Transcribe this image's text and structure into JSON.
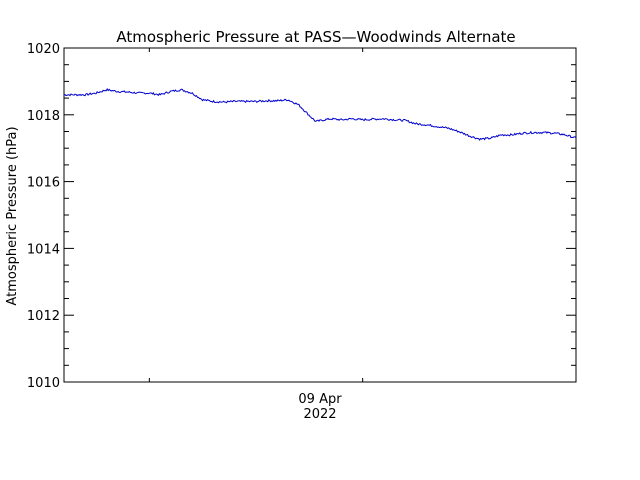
{
  "chart_data": {
    "type": "line",
    "title": "Atmospheric Pressure at PASS—Woodwinds Alternate",
    "ylabel": "Atmospheric Pressure (hPa)",
    "xlabel": "",
    "ylim": [
      1010,
      1020
    ],
    "xlim": [
      0,
      24
    ],
    "y_ticks": [
      1010,
      1012,
      1014,
      1016,
      1018,
      1020
    ],
    "x_tick_label": {
      "line1": "09 Apr",
      "line2": "2022"
    },
    "x_major_ticks": [
      4,
      14
    ],
    "grid": false,
    "line_color": "#0000cc",
    "series": [
      {
        "x": [
          0,
          0.5,
          1,
          1.5,
          2,
          2.5,
          3,
          3.5,
          4,
          4.5,
          5,
          5.5,
          6,
          6.5,
          7,
          7.5,
          8,
          8.5,
          9,
          9.5,
          10,
          10.5,
          11,
          11.5,
          11.8,
          12.2,
          12.5,
          13,
          13.5,
          14,
          14.5,
          15,
          15.5,
          16,
          16.5,
          17,
          17.5,
          18,
          18.5,
          19,
          19.5,
          20,
          20.5,
          21,
          21.5,
          22,
          22.5,
          23,
          23.5,
          24
        ],
        "y": [
          1018.6,
          1018.6,
          1018.6,
          1018.65,
          1018.75,
          1018.7,
          1018.68,
          1018.65,
          1018.65,
          1018.6,
          1018.7,
          1018.75,
          1018.65,
          1018.45,
          1018.4,
          1018.38,
          1018.4,
          1018.4,
          1018.4,
          1018.42,
          1018.42,
          1018.45,
          1018.3,
          1017.98,
          1017.8,
          1017.85,
          1017.88,
          1017.85,
          1017.88,
          1017.85,
          1017.87,
          1017.88,
          1017.85,
          1017.83,
          1017.73,
          1017.7,
          1017.65,
          1017.6,
          1017.5,
          1017.37,
          1017.27,
          1017.3,
          1017.4,
          1017.4,
          1017.45,
          1017.47,
          1017.47,
          1017.45,
          1017.4,
          1017.3
        ]
      }
    ]
  }
}
